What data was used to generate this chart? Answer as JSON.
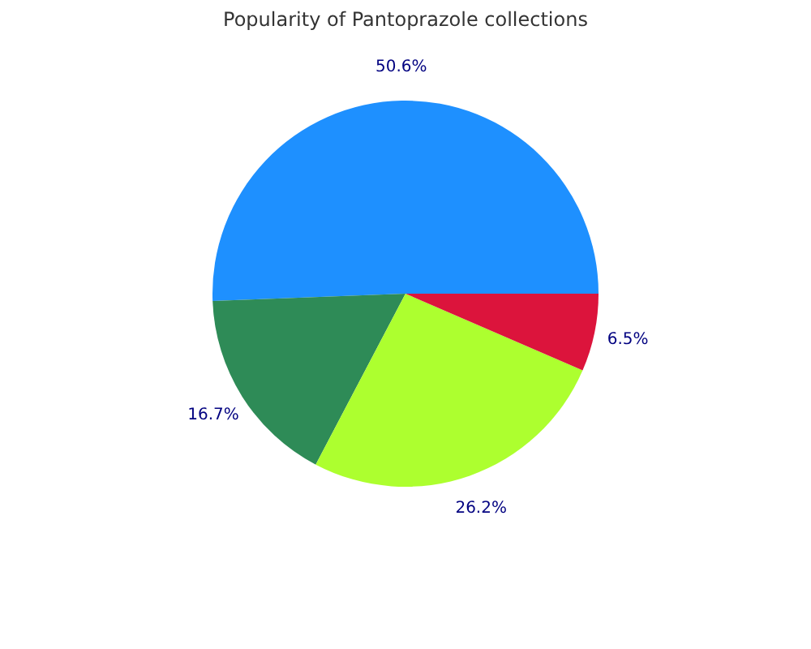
{
  "chart_data": {
    "type": "pie",
    "title": "Popularity of Pantoprazole collections",
    "categories": [
      null,
      null,
      null,
      null
    ],
    "values": [
      50.6,
      16.7,
      26.2,
      6.5
    ],
    "colors": [
      "#1e90ff",
      "#2e8b57",
      "#adff2f",
      "#dc143c"
    ],
    "value_labels": [
      "50.6%",
      "16.7%",
      "26.2%",
      "6.5%"
    ]
  }
}
